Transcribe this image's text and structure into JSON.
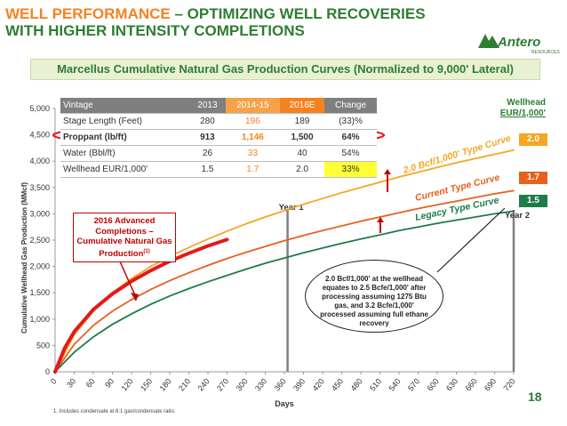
{
  "header": {
    "title_part1": "WELL PERFORMANCE",
    "title_part2": " – OPTIMIZING WELL RECOVERIES",
    "title_line2": "WITH HIGHER INTENSITY COMPLETIONS",
    "subtitle": "Marcellus Cumulative Natural Gas Production Curves (Normalized to 9,000' Lateral)",
    "logo_text": "Antero",
    "logo_sub": "RESOURCES",
    "page_number": "18"
  },
  "table": {
    "headers": [
      "Vintage",
      "2013",
      "2014-15",
      "2016E",
      "Change"
    ],
    "rows": [
      [
        "Stage Length (Feet)",
        "280",
        "196",
        "189",
        "(33)%"
      ],
      [
        "Proppant (lb/ft)",
        "913",
        "1,146",
        "1,500",
        "64%"
      ],
      [
        "Water (Bbl/ft)",
        "26",
        "33",
        "40",
        "54%"
      ],
      [
        "Wellhead EUR/1,000'",
        "1.5",
        "1.7",
        "2.0",
        "33%"
      ]
    ]
  },
  "callout": {
    "text": "2016 Advanced Completions – Cumulative Natural Gas Production",
    "sup": "(1)"
  },
  "oval_note": "2.0 Bcf/1,000' at the wellhead equates to 2.5 Bcfe/1,000' after processing assuming 1275 Btu gas, and 3.2 Bcfe/1,000' processed assuming full ethane recovery",
  "eur": {
    "title_line1": "Wellhead",
    "title_line2": "EUR/1,000'",
    "boxes": [
      {
        "label": "2.0",
        "color": "#f5a623"
      },
      {
        "label": "1.7",
        "color": "#e8601c"
      },
      {
        "label": "1.5",
        "color": "#1e7b4a"
      }
    ]
  },
  "footnote": "1.  Includes condensate at 6:1 gas/condensate ratio.",
  "colors": {
    "green": "#2e7d32",
    "orange": "#f58220",
    "red": "#e31a1c",
    "gold": "#f5a623",
    "grey": "#808080"
  },
  "chart_data": {
    "type": "line",
    "title": "",
    "xlabel": "Days",
    "ylabel": "Cumulative Wellhead Gas Production (MMcf)",
    "xlim": [
      0,
      720
    ],
    "ylim": [
      0,
      5000
    ],
    "x_ticks": [
      0,
      30,
      60,
      90,
      120,
      150,
      180,
      210,
      240,
      270,
      300,
      330,
      360,
      390,
      420,
      450,
      480,
      510,
      540,
      570,
      600,
      630,
      660,
      690,
      720
    ],
    "y_ticks": [
      0,
      500,
      1000,
      1500,
      2000,
      2500,
      3000,
      3500,
      4000,
      4500,
      5000
    ],
    "y_tick_labels": [
      "0",
      "500",
      "1,000",
      "1,500",
      "2,000",
      "2,500",
      "3,000",
      "3,500",
      "4,000",
      "4,500",
      "5,000"
    ],
    "grid": false,
    "vertical_markers": [
      {
        "x": 365,
        "label": "Year 1"
      },
      {
        "x": 730,
        "label": "Year 2"
      }
    ],
    "series": [
      {
        "name": "2.0 Bcf/1,000' Type Curve",
        "color": "#f5a623",
        "x": [
          0,
          30,
          60,
          90,
          120,
          150,
          180,
          210,
          240,
          270,
          300,
          330,
          360,
          390,
          420,
          450,
          480,
          510,
          540,
          570,
          600,
          630,
          660,
          690,
          720
        ],
        "values": [
          0,
          700,
          1150,
          1500,
          1770,
          2000,
          2190,
          2360,
          2520,
          2670,
          2810,
          2940,
          3060,
          3180,
          3290,
          3400,
          3500,
          3600,
          3700,
          3790,
          3880,
          3970,
          4050,
          4130,
          4210
        ]
      },
      {
        "name": "Current Type Curve",
        "color": "#e8601c",
        "x": [
          0,
          30,
          60,
          90,
          120,
          150,
          180,
          210,
          240,
          270,
          300,
          330,
          360,
          390,
          420,
          450,
          480,
          510,
          540,
          570,
          600,
          630,
          660,
          690,
          720
        ],
        "values": [
          0,
          520,
          880,
          1150,
          1370,
          1560,
          1730,
          1880,
          2020,
          2150,
          2270,
          2380,
          2490,
          2590,
          2680,
          2770,
          2860,
          2940,
          3020,
          3100,
          3170,
          3240,
          3310,
          3380,
          3440
        ]
      },
      {
        "name": "Legacy Type Curve",
        "color": "#1e7b4a",
        "x": [
          0,
          30,
          60,
          90,
          120,
          150,
          180,
          210,
          240,
          270,
          300,
          330,
          360,
          390,
          420,
          450,
          480,
          510,
          540,
          570,
          600,
          630,
          660,
          690,
          720
        ],
        "values": [
          0,
          370,
          660,
          900,
          1100,
          1280,
          1440,
          1580,
          1710,
          1830,
          1950,
          2060,
          2160,
          2260,
          2350,
          2440,
          2520,
          2600,
          2680,
          2750,
          2820,
          2880,
          2940,
          3000,
          3050
        ]
      },
      {
        "name": "2016 Advanced Completions – Cumulative Natural Gas Production",
        "color": "#e31a1c",
        "x": [
          0,
          15,
          30,
          60,
          90,
          120,
          150,
          180,
          210,
          240,
          270
        ],
        "values": [
          0,
          450,
          760,
          1180,
          1480,
          1720,
          1920,
          2100,
          2250,
          2390,
          2510
        ]
      }
    ]
  }
}
